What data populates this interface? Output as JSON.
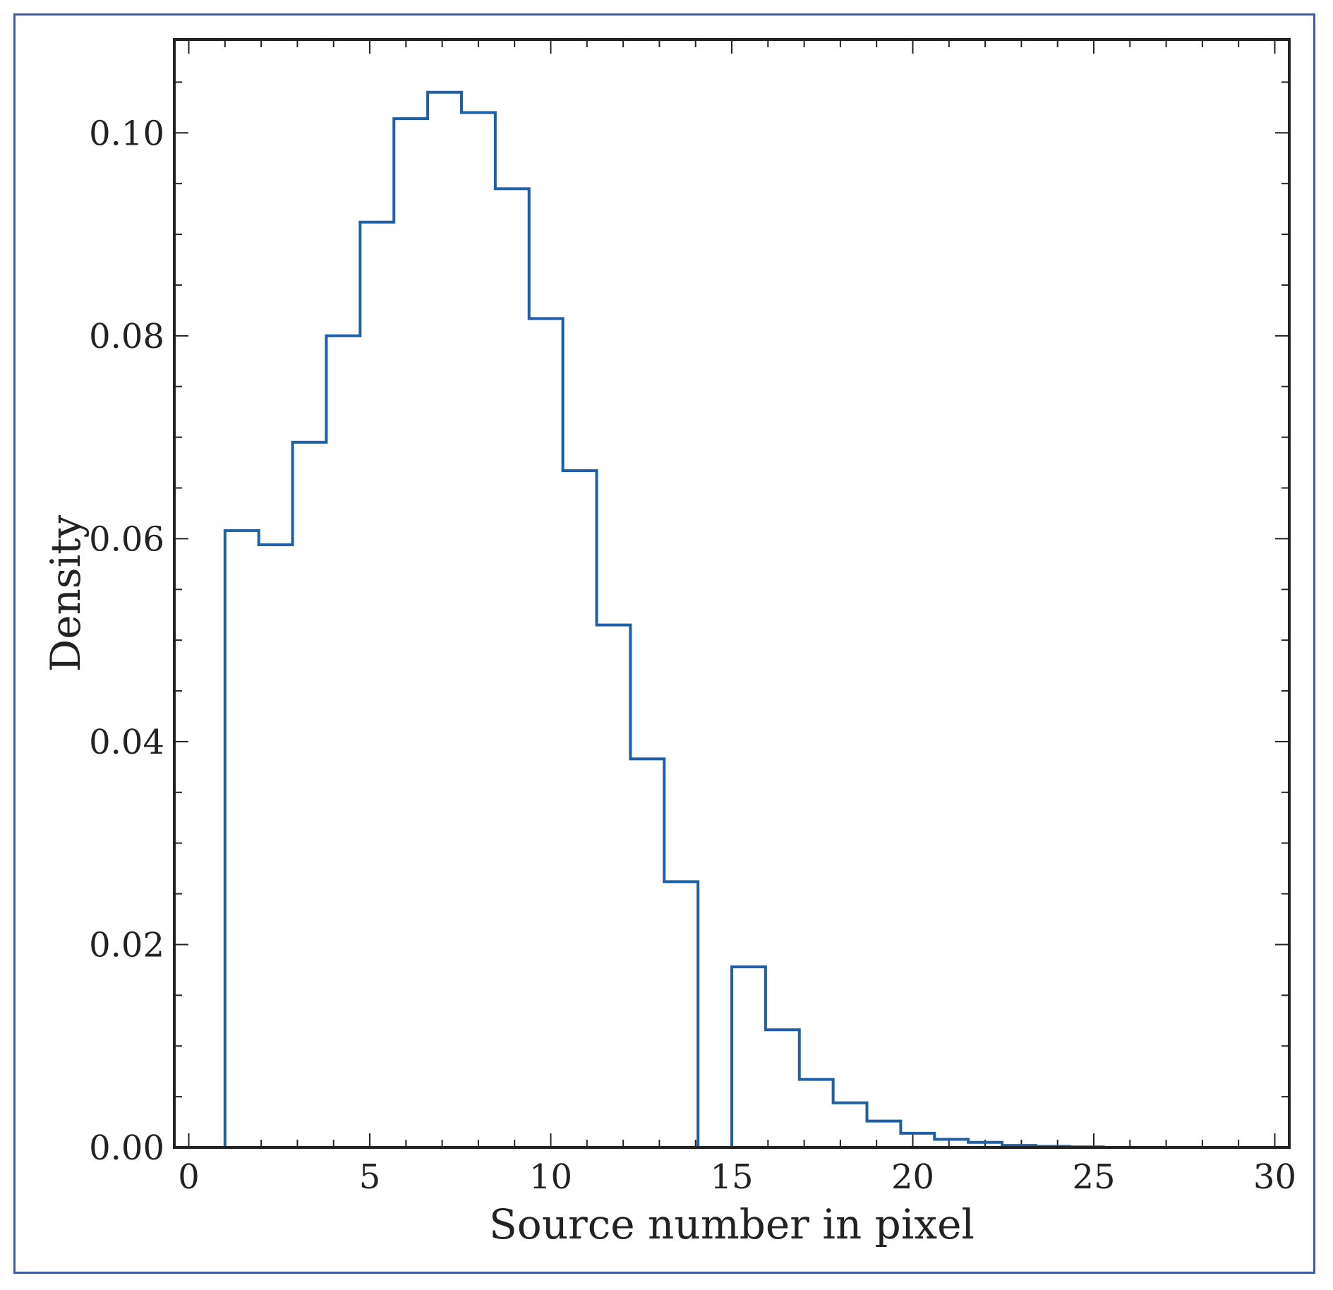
{
  "chart_data": {
    "type": "bar",
    "style": "step-histogram",
    "title": "",
    "xlabel": "Source number in pixel",
    "ylabel": "Density",
    "xlim": [
      -0.4,
      30.4
    ],
    "ylim": [
      0,
      0.1092
    ],
    "xticks": [
      0,
      5,
      10,
      15,
      20,
      25,
      30
    ],
    "xtick_labels": [
      "0",
      "5",
      "10",
      "15",
      "20",
      "25",
      "30"
    ],
    "yticks": [
      0.0,
      0.02,
      0.04,
      0.06,
      0.08,
      0.1
    ],
    "ytick_labels": [
      "0.00",
      "0.02",
      "0.04",
      "0.06",
      "0.08",
      "0.10"
    ],
    "grid": false,
    "line_color": "#1f5fa8",
    "bin_edges": [
      1.0,
      1.933,
      2.867,
      3.8,
      4.733,
      5.667,
      6.6,
      7.533,
      8.467,
      9.4,
      10.333,
      11.267,
      12.2,
      13.133,
      14.067,
      15.0,
      15.933,
      16.867,
      17.8,
      18.733,
      19.667,
      20.6,
      21.533,
      22.467,
      23.4,
      24.333,
      25.267
    ],
    "values": [
      0.0608,
      0.0594,
      0.0695,
      0.08,
      0.0912,
      0.1014,
      0.104,
      0.102,
      0.0945,
      0.0817,
      0.0667,
      0.0515,
      0.0383,
      0.0262,
      0.0,
      0.0178,
      0.0116,
      0.0067,
      0.0044,
      0.0026,
      0.0014,
      0.0008,
      0.0005,
      0.0002,
      0.0001,
      5e-05
    ]
  }
}
